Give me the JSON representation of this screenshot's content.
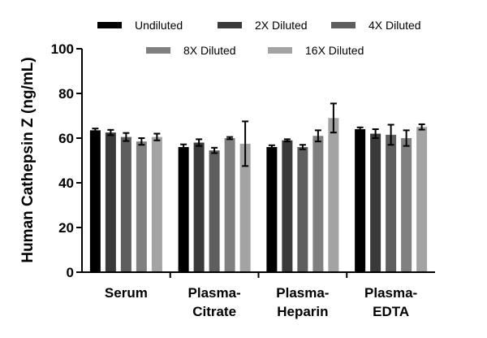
{
  "chart_data": {
    "type": "bar",
    "title": "",
    "xlabel": "",
    "ylabel": "Human Cathepsin Z (ng/mL)",
    "ylim": [
      0,
      100
    ],
    "yticks": [
      0,
      20,
      40,
      60,
      80,
      100
    ],
    "categories": [
      [
        "Serum"
      ],
      [
        "Plasma-",
        "Citrate"
      ],
      [
        "Plasma-",
        "Heparin"
      ],
      [
        "Plasma-",
        "EDTA"
      ]
    ],
    "legend_position": "top",
    "series": [
      {
        "name": "Undiluted",
        "color": "#000000",
        "values": [
          63.5,
          56.0,
          56.0,
          64.0
        ],
        "errors": [
          0.8,
          1.2,
          0.8,
          0.8
        ]
      },
      {
        "name": "2X Diluted",
        "color": "#3a3a3a",
        "values": [
          62.5,
          58.0,
          59.0,
          62.0
        ],
        "errors": [
          1.2,
          1.5,
          0.5,
          2.0
        ]
      },
      {
        "name": "4X Diluted",
        "color": "#5e5e5e",
        "values": [
          60.5,
          54.5,
          56.0,
          61.5
        ],
        "errors": [
          1.8,
          1.2,
          1.0,
          4.5
        ]
      },
      {
        "name": "8X Diluted",
        "color": "#808080",
        "values": [
          58.5,
          60.0,
          61.0,
          60.0
        ],
        "errors": [
          1.5,
          0.5,
          2.5,
          3.5
        ]
      },
      {
        "name": "16X Diluted",
        "color": "#a3a3a3",
        "values": [
          60.5,
          57.5,
          69.0,
          65.0
        ],
        "errors": [
          1.5,
          10.0,
          6.5,
          1.2
        ]
      }
    ]
  }
}
